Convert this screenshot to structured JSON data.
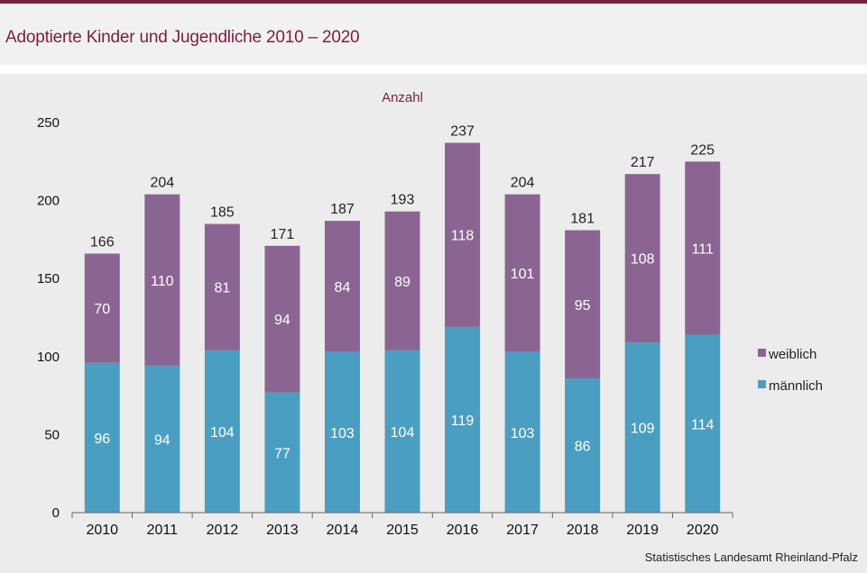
{
  "title": "Adoptierte Kinder und Jugendliche 2010 – 2020",
  "source": "Statistisches Landesamt Rheinland-Pfalz",
  "colors": {
    "maennlich": "#4a9ec2",
    "weiblich": "#8b6592",
    "title": "#7a1f3d"
  },
  "chart_data": {
    "type": "bar",
    "stacked": true,
    "ylabel": "Anzahl",
    "ylim": [
      0,
      250
    ],
    "yticks": [
      0,
      50,
      100,
      150,
      200,
      250
    ],
    "grid": false,
    "legend_position": "right",
    "categories": [
      "2010",
      "2011",
      "2012",
      "2013",
      "2014",
      "2015",
      "2016",
      "2017",
      "2018",
      "2019",
      "2020"
    ],
    "series": [
      {
        "name": "männlich",
        "values": [
          96,
          94,
          104,
          77,
          103,
          104,
          119,
          103,
          86,
          109,
          114
        ]
      },
      {
        "name": "weiblich",
        "values": [
          70,
          110,
          81,
          94,
          84,
          89,
          118,
          101,
          95,
          108,
          111
        ]
      }
    ],
    "totals": [
      166,
      204,
      185,
      171,
      187,
      193,
      237,
      204,
      181,
      217,
      225
    ],
    "legend": [
      "weiblich",
      "männlich"
    ]
  }
}
